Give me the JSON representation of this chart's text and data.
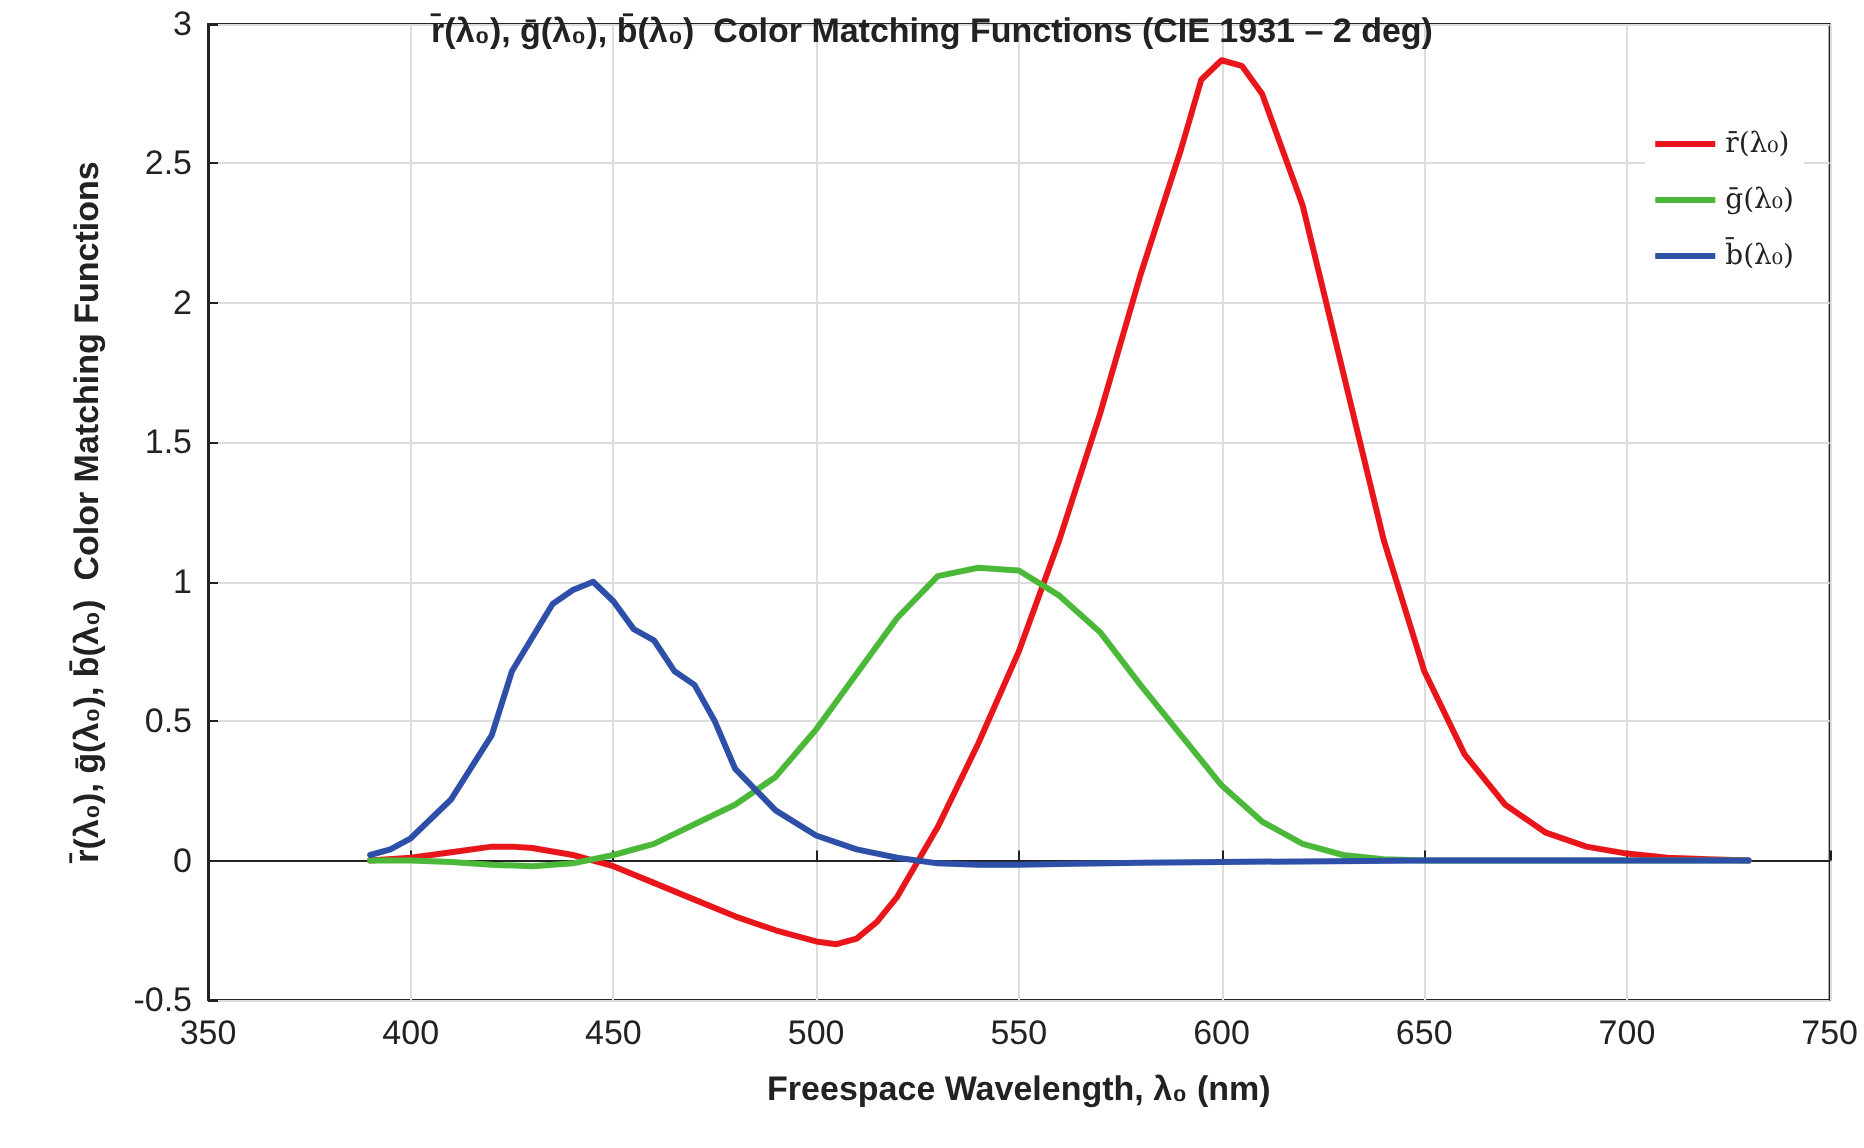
{
  "chart_data": {
    "type": "line",
    "title": "r̄(λ₀), ḡ(λ₀), b̄(λ₀)  Color Matching Functions (CIE 1931 – 2 deg)",
    "xlabel": "Freespace Wavelength, λ₀ (nm)",
    "ylabel": "r̄(λ₀), ḡ(λ₀), b̄(λ₀)  Color Matching Functions",
    "xlim": [
      350,
      750
    ],
    "xticks": [
      350,
      400,
      450,
      500,
      550,
      600,
      650,
      700,
      750
    ],
    "ylim": [
      -0.5,
      3
    ],
    "yticks": [
      -0.5,
      0,
      0.5,
      1,
      1.5,
      2,
      2.5,
      3
    ],
    "grid": true,
    "legend": "top right",
    "marker": "none",
    "line_style": "solid",
    "series": [
      {
        "name": "r̄(λ₀)",
        "color": "#e8161b",
        "x": [
          390,
          400,
          410,
          420,
          425,
          430,
          440,
          450,
          460,
          470,
          480,
          490,
          500,
          505,
          510,
          515,
          520,
          530,
          540,
          550,
          560,
          570,
          580,
          590,
          595,
          600,
          605,
          610,
          620,
          630,
          640,
          650,
          660,
          670,
          680,
          690,
          700,
          710,
          720,
          730
        ],
        "values": [
          0,
          0.01,
          0.03,
          0.05,
          0.05,
          0.045,
          0.02,
          -0.02,
          -0.08,
          -0.14,
          -0.2,
          -0.25,
          -0.29,
          -0.3,
          -0.28,
          -0.22,
          -0.13,
          0.12,
          0.42,
          0.75,
          1.15,
          1.6,
          2.1,
          2.55,
          2.8,
          2.87,
          2.85,
          2.75,
          2.35,
          1.75,
          1.15,
          0.68,
          0.38,
          0.2,
          0.1,
          0.05,
          0.025,
          0.01,
          0.005,
          0
        ]
      },
      {
        "name": "ḡ(λ₀)",
        "color": "#4cb83a",
        "x": [
          390,
          400,
          410,
          420,
          430,
          440,
          450,
          460,
          470,
          480,
          490,
          500,
          510,
          520,
          530,
          540,
          550,
          560,
          570,
          580,
          590,
          600,
          610,
          620,
          630,
          640,
          650,
          730
        ],
        "values": [
          0,
          0,
          -0.005,
          -0.015,
          -0.02,
          -0.01,
          0.02,
          0.06,
          0.13,
          0.2,
          0.3,
          0.47,
          0.67,
          0.87,
          1.02,
          1.05,
          1.04,
          0.95,
          0.82,
          0.63,
          0.45,
          0.27,
          0.14,
          0.06,
          0.02,
          0.005,
          0,
          0
        ]
      },
      {
        "name": "b̄(λ₀)",
        "color": "#2d4fa8",
        "x": [
          390,
          395,
          400,
          410,
          420,
          425,
          430,
          435,
          440,
          445,
          450,
          455,
          460,
          465,
          470,
          475,
          480,
          490,
          500,
          510,
          520,
          530,
          540,
          550,
          560,
          580,
          600,
          650,
          730
        ],
        "values": [
          0.02,
          0.04,
          0.08,
          0.22,
          0.45,
          0.68,
          0.8,
          0.92,
          0.97,
          1,
          0.93,
          0.83,
          0.79,
          0.68,
          0.63,
          0.5,
          0.33,
          0.18,
          0.09,
          0.04,
          0.01,
          -0.01,
          -0.015,
          -0.015,
          -0.012,
          -0.008,
          -0.005,
          0,
          0
        ]
      }
    ]
  }
}
